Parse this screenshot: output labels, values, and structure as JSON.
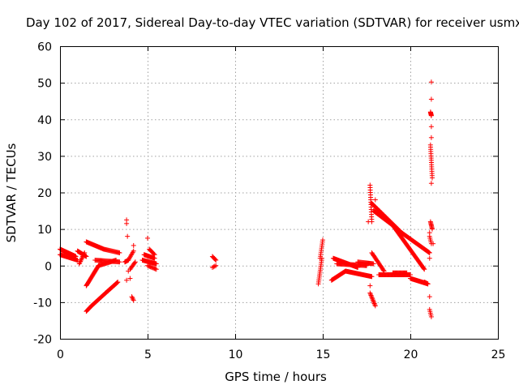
{
  "chart_data": {
    "type": "scatter",
    "title": "Day 102 of 2017, Sidereal Day-to-day VTEC variation (SDTVAR) for receiver usmx",
    "xlabel": "GPS time / hours",
    "ylabel": "SDTVAR / TECUs",
    "xlim": [
      0,
      25
    ],
    "ylim": [
      -20,
      60
    ],
    "xticks": [
      "0",
      "5",
      "10",
      "15",
      "20",
      "25"
    ],
    "yticks": [
      "60",
      "50",
      "40",
      "30",
      "20",
      "10",
      "0",
      "-10",
      "-20"
    ],
    "grid": true,
    "marker": "plus",
    "color": "#ff0000",
    "segments": [
      {
        "x0": 0.0,
        "x1": 0.9,
        "y0": 4.5,
        "y1": 2.5,
        "n": 40
      },
      {
        "x0": 0.0,
        "x1": 1.0,
        "y0": 3.0,
        "y1": 1.5,
        "n": 30
      },
      {
        "x0": 1.0,
        "x1": 1.5,
        "y0": 4.0,
        "y1": 2.5,
        "n": 20
      },
      {
        "x0": 1.1,
        "x1": 1.4,
        "y0": 0.5,
        "y1": 3.5,
        "n": 10
      },
      {
        "x0": 1.5,
        "x1": 2.5,
        "y0": 6.5,
        "y1": 4.5,
        "n": 30
      },
      {
        "x0": 2.5,
        "x1": 3.4,
        "y0": 4.5,
        "y1": 3.5,
        "n": 20
      },
      {
        "x0": 1.5,
        "x1": 2.2,
        "y0": -5.5,
        "y1": 0.0,
        "n": 25
      },
      {
        "x0": 2.2,
        "x1": 3.2,
        "y0": 0.0,
        "y1": 1.5,
        "n": 25
      },
      {
        "x0": 2.0,
        "x1": 3.4,
        "y0": 1.5,
        "y1": 1.0,
        "n": 30
      },
      {
        "x0": 1.5,
        "x1": 1.8,
        "y0": -12.5,
        "y1": -11.0,
        "n": 10
      },
      {
        "x0": 1.8,
        "x1": 2.6,
        "y0": -11.0,
        "y1": -7.5,
        "n": 25
      },
      {
        "x0": 2.6,
        "x1": 3.3,
        "y0": -7.5,
        "y1": -4.5,
        "n": 25
      },
      {
        "x0": 3.7,
        "x1": 3.9,
        "y0": 1.0,
        "y1": 1.5,
        "n": 8
      },
      {
        "x0": 3.9,
        "x1": 4.2,
        "y0": 1.5,
        "y1": 4.0,
        "n": 8
      },
      {
        "x0": 4.0,
        "x1": 4.3,
        "y0": -1.0,
        "y1": 1.0,
        "n": 8
      },
      {
        "x0": 4.1,
        "x1": 4.2,
        "y0": -8.5,
        "y1": -9.5,
        "n": 4
      },
      {
        "x0": 4.7,
        "x1": 5.5,
        "y0": 1.5,
        "y1": 0.5,
        "n": 25
      },
      {
        "x0": 4.8,
        "x1": 5.4,
        "y0": 3.0,
        "y1": 2.0,
        "n": 18
      },
      {
        "x0": 5.1,
        "x1": 5.4,
        "y0": 4.5,
        "y1": 3.0,
        "n": 8
      },
      {
        "x0": 5.0,
        "x1": 5.5,
        "y0": 0.0,
        "y1": -1.0,
        "n": 10
      },
      {
        "x0": 8.7,
        "x1": 8.9,
        "y0": 2.5,
        "y1": 1.5,
        "n": 6
      },
      {
        "x0": 8.7,
        "x1": 8.9,
        "y0": -0.5,
        "y1": 0.0,
        "n": 4
      },
      {
        "x0": 14.75,
        "x1": 14.95,
        "y0": -5.0,
        "y1": 2.0,
        "n": 14
      },
      {
        "x0": 14.85,
        "x1": 15.0,
        "y0": 2.0,
        "y1": 7.0,
        "n": 10
      },
      {
        "x0": 15.6,
        "x1": 17.0,
        "y0": 2.0,
        "y1": -0.5,
        "n": 45
      },
      {
        "x0": 15.5,
        "x1": 16.3,
        "y0": -4.0,
        "y1": -1.5,
        "n": 25
      },
      {
        "x0": 16.3,
        "x1": 17.8,
        "y0": -1.5,
        "y1": -3.0,
        "n": 45
      },
      {
        "x0": 15.8,
        "x1": 17.5,
        "y0": 0.5,
        "y1": 0.0,
        "n": 40
      },
      {
        "x0": 17.0,
        "x1": 17.9,
        "y0": 1.0,
        "y1": 0.5,
        "n": 20
      },
      {
        "x0": 17.8,
        "x1": 18.5,
        "y0": 3.5,
        "y1": -1.5,
        "n": 20
      },
      {
        "x0": 17.7,
        "x1": 18.0,
        "y0": -7.5,
        "y1": -11.0,
        "n": 12
      },
      {
        "x0": 17.7,
        "x1": 17.8,
        "y0": 22.0,
        "y1": 12.0,
        "n": 16
      },
      {
        "x0": 17.8,
        "x1": 19.5,
        "y0": 17.0,
        "y1": 9.0,
        "n": 60
      },
      {
        "x0": 19.5,
        "x1": 21.1,
        "y0": 9.0,
        "y1": 3.5,
        "n": 55
      },
      {
        "x0": 17.9,
        "x1": 19.0,
        "y0": 15.0,
        "y1": 11.0,
        "n": 40
      },
      {
        "x0": 19.0,
        "x1": 20.8,
        "y0": 11.0,
        "y1": -1.0,
        "n": 60
      },
      {
        "x0": 18.2,
        "x1": 20.0,
        "y0": -2.5,
        "y1": -2.5,
        "n": 50
      },
      {
        "x0": 20.0,
        "x1": 21.0,
        "y0": -3.5,
        "y1": -5.0,
        "n": 35
      },
      {
        "x0": 19.0,
        "x1": 19.8,
        "y0": -2.0,
        "y1": -2.0,
        "n": 20
      },
      {
        "x0": 20.8,
        "x1": 21.0,
        "y0": -4.5,
        "y1": -5.0,
        "n": 8
      },
      {
        "x0": 21.15,
        "x1": 21.2,
        "y0": 42.0,
        "y1": 41.0,
        "n": 8
      },
      {
        "x0": 21.15,
        "x1": 21.25,
        "y0": 33.0,
        "y1": 24.0,
        "n": 16
      },
      {
        "x0": 21.15,
        "x1": 21.25,
        "y0": 12.0,
        "y1": 10.0,
        "n": 8
      },
      {
        "x0": 21.1,
        "x1": 21.2,
        "y0": 8.0,
        "y1": 6.0,
        "n": 5
      },
      {
        "x0": 21.1,
        "x1": 21.2,
        "y0": -12.0,
        "y1": -14.0,
        "n": 5
      }
    ],
    "isolated_points": [
      [
        3.8,
        12.5
      ],
      [
        3.8,
        11.5
      ],
      [
        3.85,
        8.0
      ],
      [
        4.2,
        5.5
      ],
      [
        4.0,
        -3.5
      ],
      [
        3.8,
        -4.0
      ],
      [
        3.9,
        -1.5
      ],
      [
        5.0,
        7.5
      ],
      [
        17.7,
        -5.5
      ],
      [
        21.2,
        50.2
      ],
      [
        21.2,
        45.5
      ],
      [
        21.2,
        38.0
      ],
      [
        21.2,
        35.0
      ],
      [
        21.2,
        22.5
      ],
      [
        21.1,
        9.0
      ],
      [
        21.1,
        2.0
      ],
      [
        21.1,
        -8.5
      ],
      [
        18.0,
        18.0
      ],
      [
        17.6,
        12.0
      ],
      [
        21.3,
        6.0
      ]
    ]
  }
}
